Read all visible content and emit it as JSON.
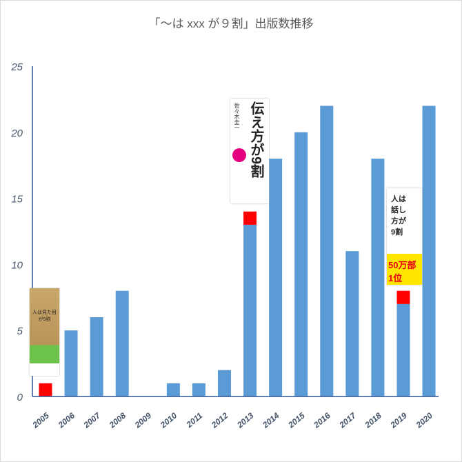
{
  "chart_data": {
    "type": "bar",
    "title": "「～は xxx が９割」出版数推移",
    "xlabel": "",
    "ylabel": "",
    "ylim": [
      0,
      25
    ],
    "yticks": [
      0,
      5,
      10,
      15,
      20,
      25
    ],
    "grid": false,
    "categories": [
      "2005",
      "2006",
      "2007",
      "2008",
      "2009",
      "2010",
      "2011",
      "2012",
      "2013",
      "2014",
      "2015",
      "2016",
      "2017",
      "2018",
      "2019",
      "2020"
    ],
    "series": [
      {
        "values": [
          0,
          5,
          6,
          8,
          0,
          1,
          1,
          2,
          13,
          18,
          20,
          22,
          11,
          18,
          7,
          22
        ],
        "color": "#5b9bd5"
      },
      {
        "values": [
          1,
          0,
          0,
          0,
          0,
          0,
          0,
          0,
          1,
          0,
          0,
          0,
          0,
          0,
          1,
          0
        ],
        "color": "#ff0000"
      }
    ],
    "annotations": [
      {
        "type": "book-cover",
        "category": "2005",
        "title": "人は見た目が9割"
      },
      {
        "type": "book-cover",
        "category": "2013",
        "title": "伝え方が9割",
        "author": "佐々木圭一"
      },
      {
        "type": "book-cover",
        "category": "2019",
        "title": "人は話し方が9割",
        "badge": "50万部 1位"
      }
    ]
  }
}
